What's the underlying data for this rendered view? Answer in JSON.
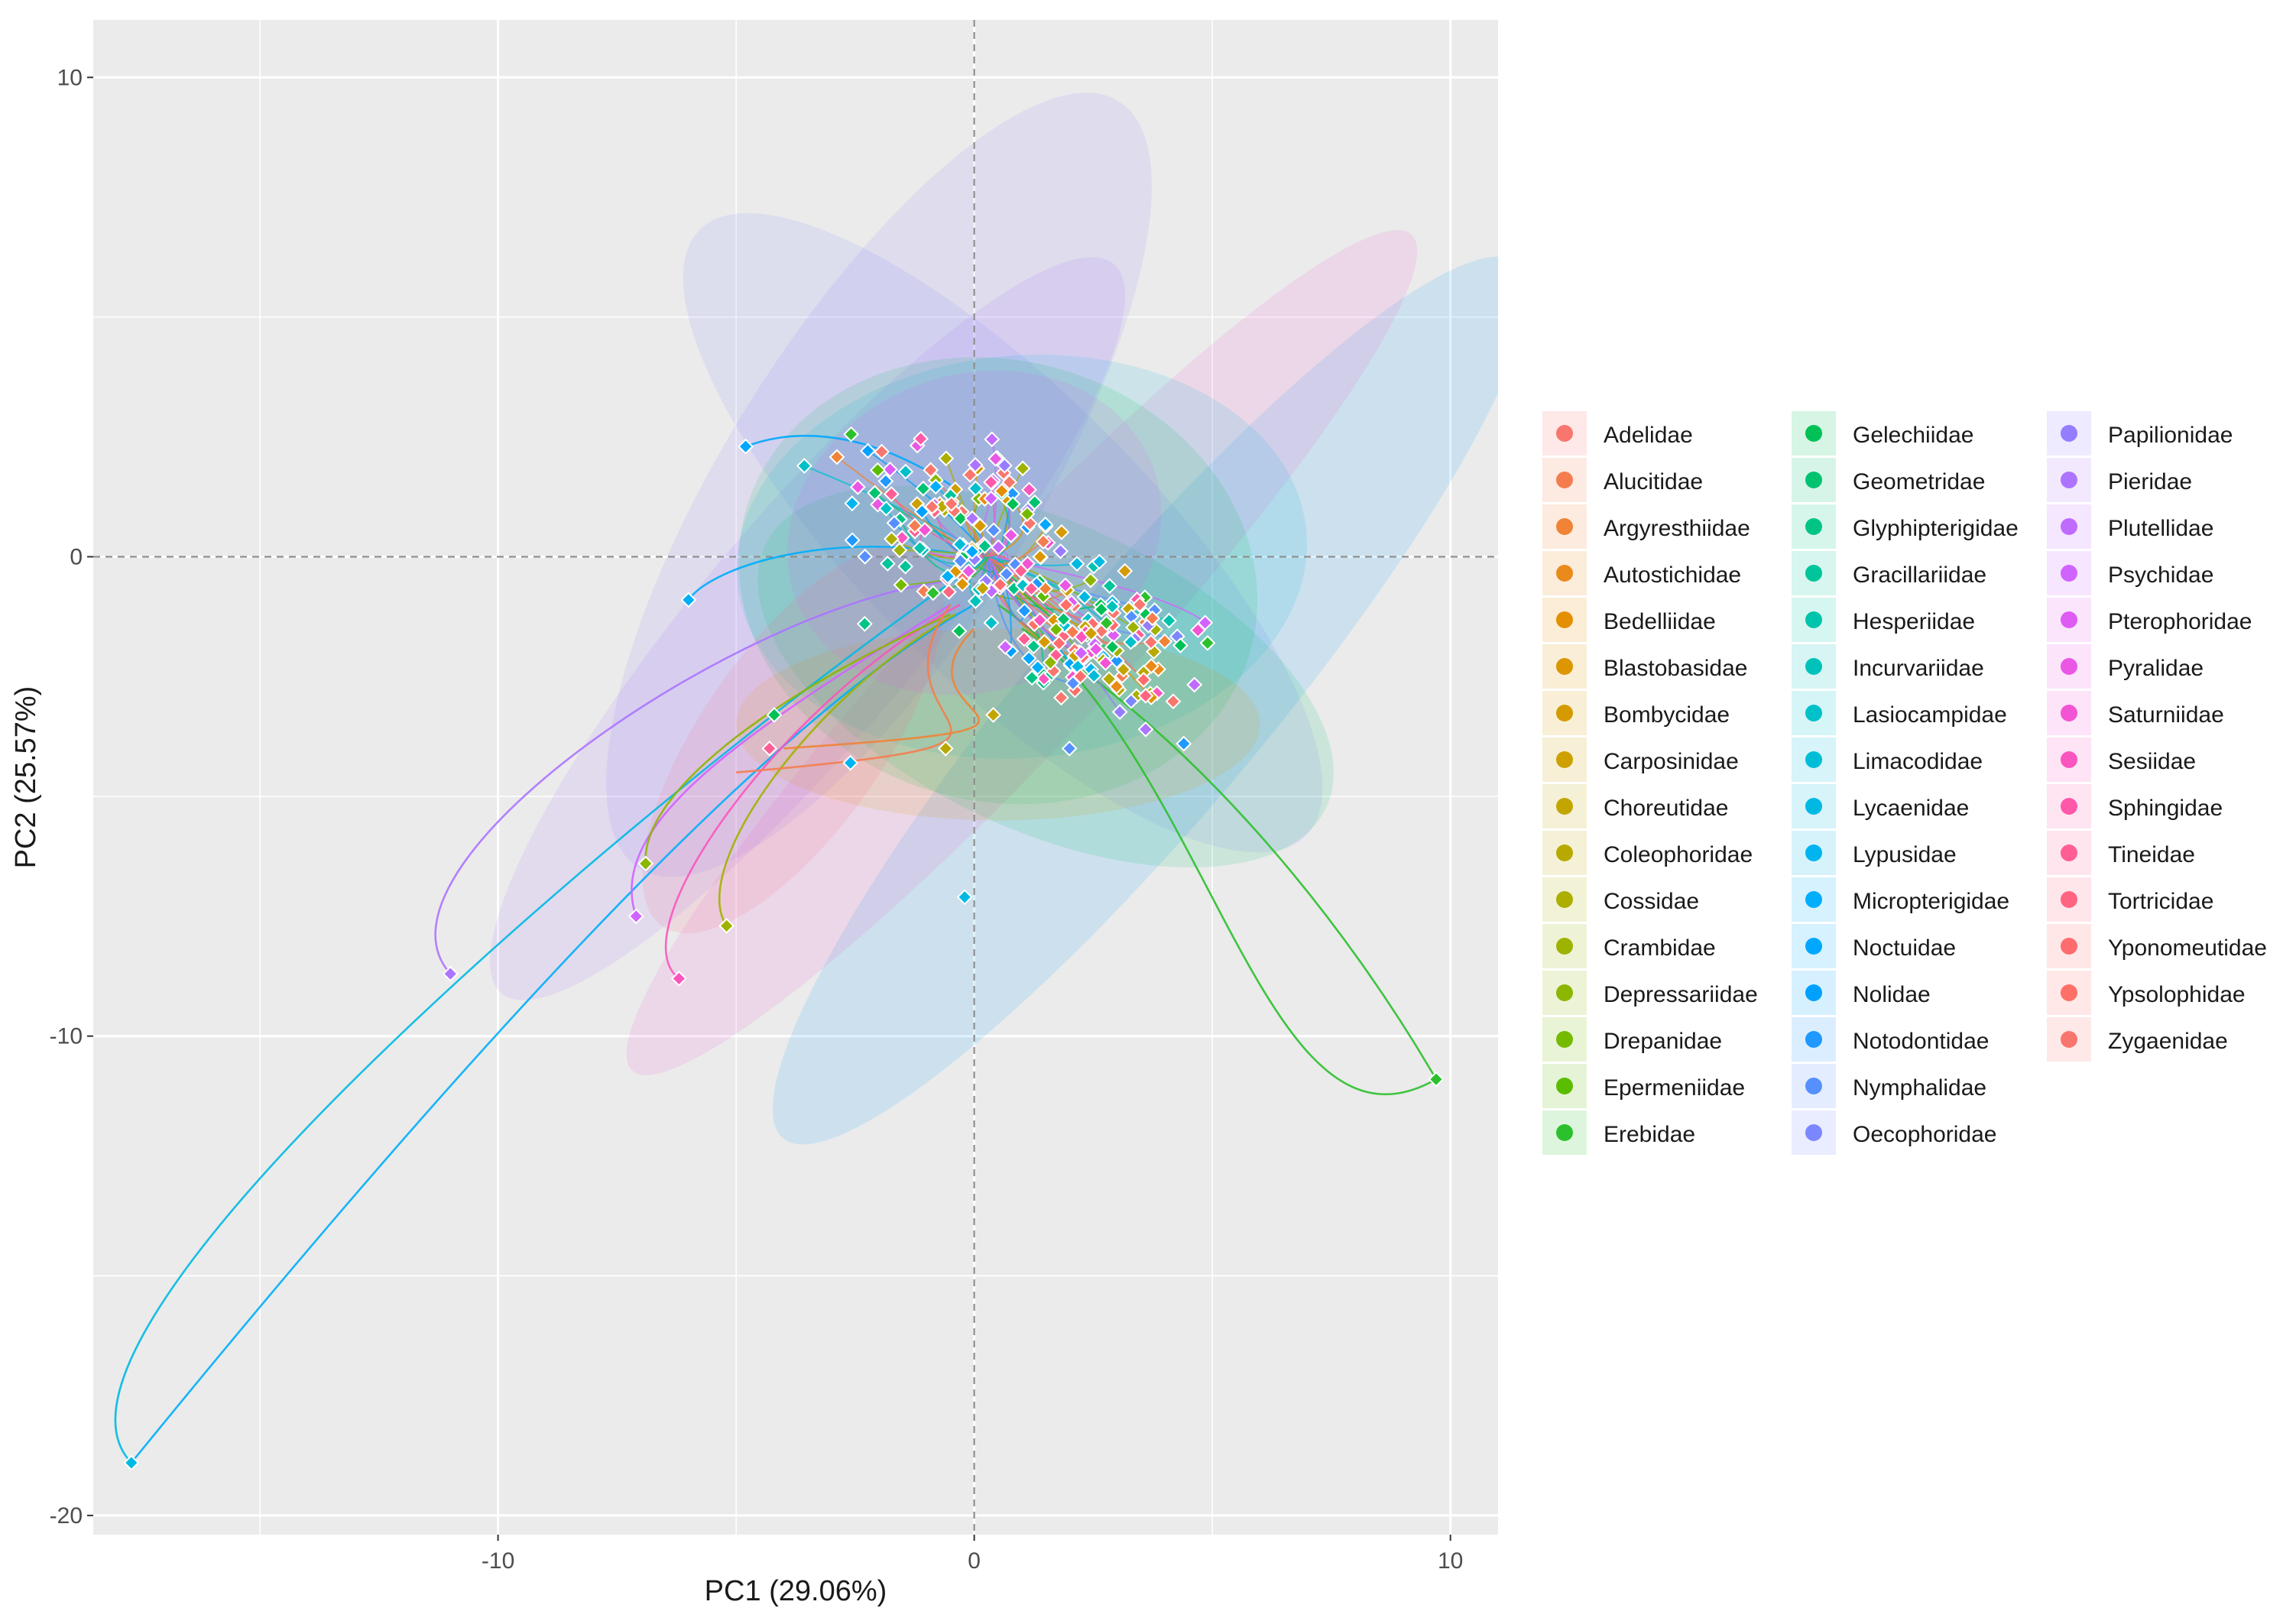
{
  "chart_data": {
    "type": "scatter",
    "subtype": "pca-biplot-with-ellipses",
    "title": "",
    "xlabel": "PC1 (29.06%)",
    "ylabel": "PC2 (25.57%)",
    "xlim": [
      -18.5,
      11
    ],
    "ylim": [
      -20.4,
      11.2
    ],
    "xticks": [
      -10,
      0,
      10
    ],
    "xtick_labels": [
      "-10",
      "0",
      "10"
    ],
    "yticks": [
      10,
      0,
      -10,
      -20
    ],
    "ytick_labels": [
      "10",
      "0",
      "-10",
      "-20"
    ],
    "grid": true,
    "reference_lines": [
      {
        "axis": "x",
        "value": 0,
        "style": "dashed"
      },
      {
        "axis": "y",
        "value": 0,
        "style": "dashed"
      }
    ],
    "legend_position": "right",
    "legend_columns": 3,
    "groups": [
      {
        "name": "Adelidae",
        "color": "#F8766D"
      },
      {
        "name": "Alucitidae",
        "color": "#F47D4F"
      },
      {
        "name": "Argyresthiidae",
        "color": "#F08335"
      },
      {
        "name": "Autostichidae",
        "color": "#EA8A1A"
      },
      {
        "name": "Bedelliidae",
        "color": "#E48F00"
      },
      {
        "name": "Blastobasidae",
        "color": "#DD9500"
      },
      {
        "name": "Bombycidae",
        "color": "#D59A00"
      },
      {
        "name": "Carposinidae",
        "color": "#CDA000"
      },
      {
        "name": "Choreutidae",
        "color": "#C3A500"
      },
      {
        "name": "Coleophoridae",
        "color": "#B8A900"
      },
      {
        "name": "Cossidae",
        "color": "#ACAE00"
      },
      {
        "name": "Crambidae",
        "color": "#9EB200"
      },
      {
        "name": "Depressariidae",
        "color": "#8CB600"
      },
      {
        "name": "Drepanidae",
        "color": "#76BA00"
      },
      {
        "name": "Epermeniidae",
        "color": "#5BBD00"
      },
      {
        "name": "Erebidae",
        "color": "#2CC02D"
      },
      {
        "name": "Gelechiidae",
        "color": "#00C156"
      },
      {
        "name": "Geometridae",
        "color": "#00C370"
      },
      {
        "name": "Glyphipterigidae",
        "color": "#00C486"
      },
      {
        "name": "Gracillariidae",
        "color": "#00C49A"
      },
      {
        "name": "Hesperiidae",
        "color": "#00C4AB"
      },
      {
        "name": "Incurvariidae",
        "color": "#00C2BB"
      },
      {
        "name": "Lasiocampidae",
        "color": "#00C0CA"
      },
      {
        "name": "Limacodidae",
        "color": "#00BDD7"
      },
      {
        "name": "Lycaenidae",
        "color": "#00B9E3"
      },
      {
        "name": "Lypusidae",
        "color": "#00B4EF"
      },
      {
        "name": "Micropterigidae",
        "color": "#00AEF9"
      },
      {
        "name": "Noctuidae",
        "color": "#00A7FF"
      },
      {
        "name": "Nolidae",
        "color": "#00A0FF"
      },
      {
        "name": "Notodontidae",
        "color": "#1F98FF"
      },
      {
        "name": "Nymphalidae",
        "color": "#5690FF"
      },
      {
        "name": "Oecophoridae",
        "color": "#7B87FF"
      },
      {
        "name": "Papilionidae",
        "color": "#967DFF"
      },
      {
        "name": "Pieridae",
        "color": "#AC74FF"
      },
      {
        "name": "Plutellidae",
        "color": "#BF6BFF"
      },
      {
        "name": "Psychidae",
        "color": "#D063FF"
      },
      {
        "name": "Pterophoridae",
        "color": "#DE5CF4"
      },
      {
        "name": "Pyralidae",
        "color": "#EA57E5"
      },
      {
        "name": "Saturniidae",
        "color": "#F354D3"
      },
      {
        "name": "Sesiidae",
        "color": "#FA55BF"
      },
      {
        "name": "Sphingidae",
        "color": "#FE58AA"
      },
      {
        "name": "Tineidae",
        "color": "#FF5E94"
      },
      {
        "name": "Tortricidae",
        "color": "#FF6580"
      },
      {
        "name": "Yponomeutidae",
        "color": "#FF6C6D"
      },
      {
        "name": "Ypsolophidae",
        "color": "#FD6F67"
      },
      {
        "name": "Zygaenidae",
        "color": "#F8766D"
      }
    ],
    "ellipses": [
      {
        "group": "Nolidae",
        "cx": 3.7,
        "cy": -3.0,
        "rx": 12.0,
        "ry": 2.4,
        "angle_deg": 50
      },
      {
        "group": "Pieridae",
        "cx": -3.5,
        "cy": -1.5,
        "rx": 10.0,
        "ry": 2.3,
        "angle_deg": 50
      },
      {
        "group": "Saturniidae",
        "cx": 1.0,
        "cy": -2.0,
        "rx": 12.0,
        "ry": 1.9,
        "angle_deg": 47
      },
      {
        "group": "Oecophoridae",
        "cx": 0.6,
        "cy": 0.5,
        "rx": 9.0,
        "ry": 3.0,
        "angle_deg": -45
      },
      {
        "group": "Papilionidae",
        "cx": -2.0,
        "cy": 1.5,
        "rx": 9.5,
        "ry": 3.2,
        "angle_deg": 58
      },
      {
        "group": "Lycaenidae",
        "cx": 1.0,
        "cy": 0.0,
        "rx": 6.0,
        "ry": 4.2,
        "angle_deg": 5
      },
      {
        "group": "Gelechiidae",
        "cx": 0.5,
        "cy": -0.5,
        "rx": 5.5,
        "ry": 4.6,
        "angle_deg": -15
      },
      {
        "group": "Geometridae",
        "cx": 1.5,
        "cy": -2.5,
        "rx": 6.5,
        "ry": 3.2,
        "angle_deg": -25
      },
      {
        "group": "Bombycidae",
        "cx": 0.5,
        "cy": -3.5,
        "rx": 5.5,
        "ry": 2.0,
        "angle_deg": 0
      },
      {
        "group": "Pterophoridae",
        "cx": 0.0,
        "cy": 0.5,
        "rx": 4.0,
        "ry": 3.3,
        "angle_deg": 20
      },
      {
        "group": "Tortricidae",
        "cx": -3.8,
        "cy": -3.8,
        "rx": 4.8,
        "ry": 1.9,
        "angle_deg": 55
      }
    ],
    "cluster_center": [
      0.3,
      0.0
    ],
    "cluster_point_count": 260,
    "outliers": [
      {
        "group": "Lycaenidae",
        "x": -17.7,
        "y": -18.9
      },
      {
        "group": "Lycaenidae",
        "x": -0.2,
        "y": -7.1
      },
      {
        "group": "Erebidae",
        "x": 9.7,
        "y": -10.9
      },
      {
        "group": "Pieridae",
        "x": -11.0,
        "y": -8.7
      },
      {
        "group": "Psychidae",
        "x": -7.1,
        "y": -7.5
      },
      {
        "group": "Sesiidae",
        "x": -6.2,
        "y": -8.8
      },
      {
        "group": "Depressariidae",
        "x": -6.9,
        "y": -6.4
      },
      {
        "group": "Crambidae",
        "x": -5.2,
        "y": -7.7
      },
      {
        "group": "Noctuidae",
        "x": -4.8,
        "y": 2.3
      },
      {
        "group": "Micropterigidae",
        "x": -6.0,
        "y": -0.9
      },
      {
        "group": "Erebidae",
        "x": 4.9,
        "y": -1.8
      },
      {
        "group": "Notodontidae",
        "x": 4.4,
        "y": -3.9
      },
      {
        "group": "Gelechiidae",
        "x": -4.2,
        "y": -3.3
      },
      {
        "group": "Tineidae",
        "x": -4.3,
        "y": -4.0
      },
      {
        "group": "Coleophoridae",
        "x": -0.6,
        "y": -4.0
      },
      {
        "group": "Lypusidae",
        "x": -2.6,
        "y": -4.3
      },
      {
        "group": "Nymphalidae",
        "x": 2.0,
        "y": -4.0
      },
      {
        "group": "Pieridae",
        "x": 3.6,
        "y": -3.6
      },
      {
        "group": "Choreutidae",
        "x": 0.4,
        "y": -3.3
      },
      {
        "group": "Glyphipterigidae",
        "x": -2.3,
        "y": -1.4
      },
      {
        "group": "Tortricidae",
        "x": 3.6,
        "y": -2.9
      }
    ],
    "curved_links": [
      {
        "group": "Lycaenidae",
        "from": [
          0.3,
          0.0
        ],
        "to": [
          -17.7,
          -18.9
        ],
        "control_points": [
          [
            -5.0,
            -3.5
          ],
          [
            -20.5,
            -16.0
          ]
        ]
      },
      {
        "group": "Micropterigidae",
        "from": [
          0.0,
          -1.0
        ],
        "to": [
          -17.7,
          -18.9
        ],
        "control_points": [
          [
            -4.0,
            -3.2
          ],
          [
            -10.0,
            -9.5
          ]
        ]
      },
      {
        "group": "Erebidae",
        "from": [
          0.5,
          -1.0
        ],
        "to": [
          9.7,
          -10.9
        ],
        "control_points": [
          [
            5.0,
            -4.0
          ],
          [
            6.0,
            -13.0
          ]
        ]
      },
      {
        "group": "Erebidae",
        "from": [
          1.0,
          -1.5
        ],
        "to": [
          9.7,
          -10.9
        ],
        "control_points": [
          [
            5.0,
            -4.0
          ],
          [
            8.0,
            -8.0
          ]
        ]
      },
      {
        "group": "Pieridae",
        "from": [
          -0.5,
          -0.5
        ],
        "to": [
          -11.0,
          -8.7
        ],
        "control_points": [
          [
            -5.0,
            -1.0
          ],
          [
            -13.0,
            -6.5
          ]
        ]
      },
      {
        "group": "Psychidae",
        "from": [
          -0.5,
          -1.0
        ],
        "to": [
          -7.1,
          -7.5
        ],
        "control_points": [
          [
            -4.5,
            -3.5
          ],
          [
            -7.8,
            -5.5
          ]
        ]
      },
      {
        "group": "Sesiidae",
        "from": [
          -0.3,
          -1.0
        ],
        "to": [
          -6.2,
          -8.8
        ],
        "control_points": [
          [
            -4.0,
            -3.0
          ],
          [
            -7.5,
            -7.8
          ]
        ]
      },
      {
        "group": "Depressariidae",
        "from": [
          -0.5,
          -1.2
        ],
        "to": [
          -6.9,
          -6.4
        ],
        "control_points": [
          [
            -4.5,
            -3.0
          ],
          [
            -7.0,
            -5.0
          ]
        ]
      },
      {
        "group": "Crambidae",
        "from": [
          -0.4,
          -1.2
        ],
        "to": [
          -5.2,
          -7.7
        ],
        "control_points": [
          [
            -3.5,
            -3.0
          ],
          [
            -6.0,
            -6.5
          ]
        ]
      },
      {
        "group": "Noctuidae",
        "from": [
          -0.5,
          1.5
        ],
        "to": [
          -4.8,
          2.3
        ],
        "control_points": [
          [
            -2.5,
            2.8
          ],
          [
            -4.0,
            2.6
          ]
        ]
      },
      {
        "group": "Micropterigidae",
        "from": [
          0.0,
          0.0
        ],
        "to": [
          -6.0,
          -0.9
        ],
        "control_points": [
          [
            -3.0,
            0.6
          ],
          [
            -5.5,
            -0.2
          ]
        ]
      },
      {
        "group": "Argyresthiidae",
        "from": [
          0.0,
          -1.5
        ],
        "to": [
          -4.0,
          -4.0
        ],
        "control_points": [
          [
            -2.0,
            -3.5
          ],
          [
            3.5,
            -3.5
          ]
        ]
      },
      {
        "group": "Alucitidae",
        "from": [
          -0.5,
          -1.0
        ],
        "to": [
          -5.0,
          -4.5
        ],
        "control_points": [
          [
            -2.5,
            -3.8
          ],
          [
            3.0,
            -3.8
          ]
        ]
      }
    ]
  },
  "legend": {
    "entries": [
      "Adelidae",
      "Alucitidae",
      "Argyresthiidae",
      "Autostichidae",
      "Bedelliidae",
      "Blastobasidae",
      "Bombycidae",
      "Carposinidae",
      "Choreutidae",
      "Coleophoridae",
      "Cossidae",
      "Crambidae",
      "Depressariidae",
      "Drepanidae",
      "Epermeniidae",
      "Erebidae",
      "Gelechiidae",
      "Geometridae",
      "Glyphipterigidae",
      "Gracillariidae",
      "Hesperiidae",
      "Incurvariidae",
      "Lasiocampidae",
      "Limacodidae",
      "Lycaenidae",
      "Lypusidae",
      "Micropterigidae",
      "Noctuidae",
      "Nolidae",
      "Notodontidae",
      "Nymphalidae",
      "Oecophoridae",
      "Papilionidae",
      "Pieridae",
      "Plutellidae",
      "Psychidae",
      "Pterophoridae",
      "Pyralidae",
      "Saturniidae",
      "Sesiidae",
      "Sphingidae",
      "Tineidae",
      "Tortricidae",
      "Yponomeutidae",
      "Ypsolophidae",
      "Zygaenidae"
    ]
  },
  "colors": {
    "panel_background": "#EBEBEB",
    "grid_line": "#FFFFFF",
    "reference_line": "#8C8C8C",
    "point_stroke": "#FFFFFF"
  }
}
